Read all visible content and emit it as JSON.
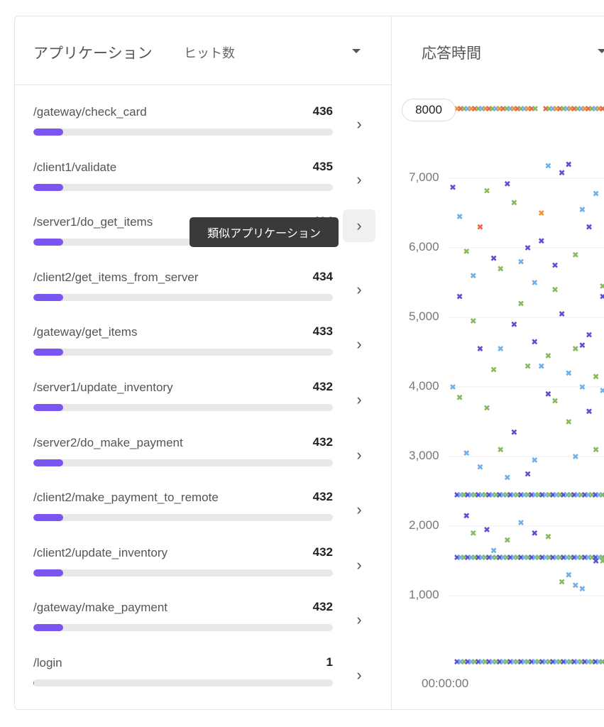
{
  "apps_panel": {
    "title": "アプリケーション",
    "metric": "ヒット数",
    "tooltip": "類似アプリケーション",
    "items": [
      {
        "name": "/gateway/check_card",
        "count": 436
      },
      {
        "name": "/client1/validate",
        "count": 435
      },
      {
        "name": "/server1/do_get_items",
        "count": 434
      },
      {
        "name": "/client2/get_items_from_server",
        "count": 434
      },
      {
        "name": "/gateway/get_items",
        "count": 433
      },
      {
        "name": "/server1/update_inventory",
        "count": 432
      },
      {
        "name": "/server2/do_make_payment",
        "count": 432
      },
      {
        "name": "/client2/make_payment_to_remote",
        "count": 432
      },
      {
        "name": "/client2/update_inventory",
        "count": 432
      },
      {
        "name": "/gateway/make_payment",
        "count": 432
      },
      {
        "name": "/login",
        "count": 1
      }
    ]
  },
  "chart_panel": {
    "title": "応答時間",
    "cap_label": "8000"
  },
  "chart_data": {
    "type": "scatter",
    "title": "",
    "xlabel": "",
    "ylabel": "",
    "y_ticks": [
      "1,000",
      "2,000",
      "3,000",
      "4,000",
      "5,000",
      "6,000",
      "7,000"
    ],
    "x_ticks": [
      "00:00:00"
    ],
    "ylim": [
      0,
      8000
    ],
    "grid": true,
    "legend": "none",
    "colors": [
      "#5b4fd6",
      "#6fb0e8",
      "#86ba5e",
      "#f0932b",
      "#e8674a"
    ],
    "dense_rows": [
      {
        "y": 8000,
        "colors": [
          3,
          4,
          2,
          1
        ]
      },
      {
        "y": 2450,
        "colors": [
          0,
          1,
          2
        ]
      },
      {
        "y": 1550,
        "colors": [
          0,
          1,
          2
        ]
      },
      {
        "y": 50,
        "colors": [
          0,
          1,
          2
        ]
      }
    ],
    "points": [
      [
        0,
        6870,
        0
      ],
      [
        1,
        6450,
        1
      ],
      [
        2,
        5950,
        2
      ],
      [
        3,
        5600,
        1
      ],
      [
        4,
        6300,
        4
      ],
      [
        5,
        6820,
        2
      ],
      [
        6,
        5850,
        0
      ],
      [
        8,
        6920,
        0
      ],
      [
        9,
        6650,
        2
      ],
      [
        11,
        6000,
        0
      ],
      [
        12,
        5500,
        1
      ],
      [
        13,
        6500,
        3
      ],
      [
        14,
        7180,
        1
      ],
      [
        16,
        7080,
        0
      ],
      [
        17,
        7200,
        0
      ],
      [
        19,
        6550,
        1
      ],
      [
        21,
        6780,
        1
      ],
      [
        23,
        6980,
        2
      ],
      [
        24,
        7150,
        1
      ],
      [
        25,
        6850,
        2
      ],
      [
        1,
        5300,
        0
      ],
      [
        3,
        4950,
        2
      ],
      [
        4,
        4550,
        0
      ],
      [
        6,
        4250,
        2
      ],
      [
        7,
        4550,
        1
      ],
      [
        9,
        4900,
        0
      ],
      [
        10,
        5200,
        2
      ],
      [
        12,
        4650,
        0
      ],
      [
        13,
        4300,
        1
      ],
      [
        15,
        5400,
        2
      ],
      [
        16,
        5050,
        0
      ],
      [
        18,
        4550,
        2
      ],
      [
        19,
        4000,
        1
      ],
      [
        20,
        4750,
        0
      ],
      [
        22,
        5450,
        2
      ],
      [
        23,
        5200,
        1
      ],
      [
        24,
        4500,
        0
      ],
      [
        0,
        4000,
        1
      ],
      [
        1,
        3850,
        2
      ],
      [
        2,
        3050,
        1
      ],
      [
        4,
        2850,
        1
      ],
      [
        5,
        3700,
        2
      ],
      [
        7,
        3100,
        2
      ],
      [
        8,
        2700,
        1
      ],
      [
        9,
        3350,
        0
      ],
      [
        11,
        2750,
        0
      ],
      [
        12,
        2950,
        1
      ],
      [
        14,
        3900,
        0
      ],
      [
        15,
        3800,
        2
      ],
      [
        17,
        3500,
        2
      ],
      [
        18,
        3000,
        1
      ],
      [
        20,
        3650,
        0
      ],
      [
        21,
        3100,
        2
      ],
      [
        22,
        3950,
        1
      ],
      [
        24,
        3150,
        1
      ],
      [
        2,
        2150,
        0
      ],
      [
        3,
        1900,
        2
      ],
      [
        5,
        1950,
        0
      ],
      [
        6,
        1650,
        1
      ],
      [
        8,
        1800,
        2
      ],
      [
        10,
        2050,
        1
      ],
      [
        12,
        1900,
        0
      ],
      [
        14,
        1850,
        2
      ],
      [
        16,
        1200,
        2
      ],
      [
        17,
        1300,
        1
      ],
      [
        18,
        1150,
        1
      ],
      [
        19,
        1100,
        1
      ],
      [
        21,
        1500,
        0
      ],
      [
        22,
        1500,
        2
      ],
      [
        23,
        1950,
        2
      ],
      [
        24,
        2150,
        1
      ],
      [
        7,
        5700,
        2
      ],
      [
        10,
        5800,
        1
      ],
      [
        13,
        6100,
        0
      ],
      [
        15,
        5750,
        0
      ],
      [
        18,
        5900,
        2
      ],
      [
        20,
        6300,
        0
      ],
      [
        22,
        5300,
        0
      ],
      [
        25,
        5450,
        2
      ],
      [
        11,
        4300,
        2
      ],
      [
        14,
        4450,
        2
      ],
      [
        17,
        4200,
        1
      ],
      [
        19,
        4600,
        0
      ],
      [
        21,
        4150,
        2
      ],
      [
        23,
        3700,
        0
      ],
      [
        25,
        4300,
        1
      ]
    ]
  }
}
